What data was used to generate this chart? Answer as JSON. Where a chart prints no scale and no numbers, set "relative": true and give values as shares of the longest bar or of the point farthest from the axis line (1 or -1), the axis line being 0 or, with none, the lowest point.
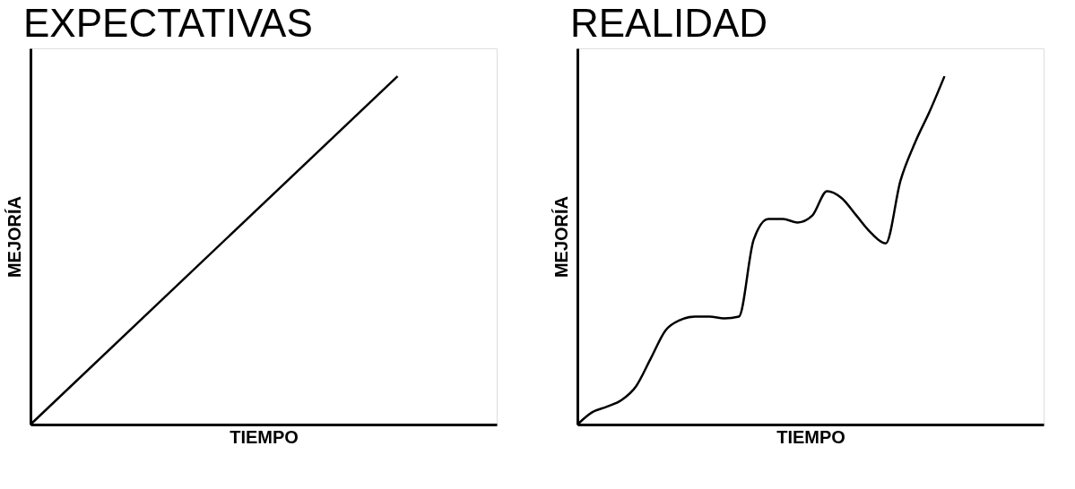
{
  "chart_data": [
    {
      "type": "line",
      "title": "EXPECTATIVAS",
      "xlabel": "TIEMPO",
      "ylabel": "MEJORÍA",
      "relative": true,
      "tick_labels": false,
      "grid": false,
      "categories": [
        null,
        null
      ],
      "series": [
        {
          "color": "#000000",
          "values": [
            0,
            1
          ]
        }
      ]
    },
    {
      "type": "line",
      "title": "REALIDAD",
      "xlabel": "TIEMPO",
      "ylabel": "MEJORÍA",
      "relative": true,
      "tick_labels": false,
      "grid": false,
      "categories": [
        null,
        null,
        null,
        null,
        null,
        null,
        null,
        null,
        null,
        null,
        null,
        null,
        null,
        null,
        null,
        null,
        null,
        null,
        null,
        null,
        null,
        null,
        null,
        null,
        null,
        null
      ],
      "series": [
        {
          "color": "#000000",
          "values": [
            0,
            0.035,
            0.051,
            0.07,
            0.11,
            0.19,
            0.27,
            0.3,
            0.31,
            0.31,
            0.305,
            0.31,
            0.53,
            0.59,
            0.59,
            0.58,
            0.6,
            0.67,
            0.65,
            0.6,
            0.55,
            0.52,
            0.7,
            0.81,
            0.9,
            1
          ]
        }
      ]
    }
  ]
}
